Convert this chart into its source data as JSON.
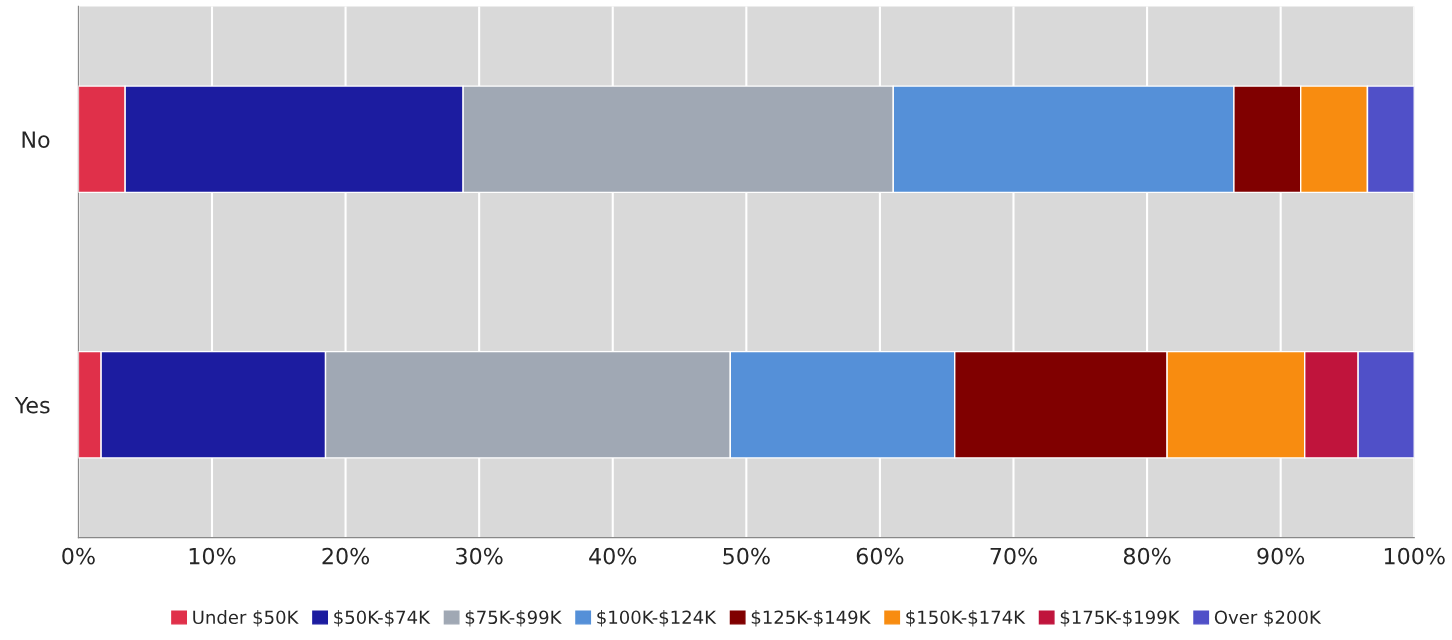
{
  "chart_data": {
    "type": "bar",
    "orientation": "horizontal",
    "stacked": true,
    "categories": [
      "No",
      "Yes"
    ],
    "series": [
      {
        "name": "Under $50K",
        "color": "#e0304a",
        "values": [
          3.5,
          1.7
        ]
      },
      {
        "name": "$50K-$74K",
        "color": "#1c1ca0",
        "values": [
          25.3,
          16.8
        ]
      },
      {
        "name": "$75K-$99K",
        "color": "#a0a8b4",
        "values": [
          32.2,
          30.3
        ]
      },
      {
        "name": "$100K-$124K",
        "color": "#5590d8",
        "values": [
          25.5,
          16.8
        ]
      },
      {
        "name": "$125K-$149K",
        "color": "#800000",
        "values": [
          5.0,
          15.9
        ]
      },
      {
        "name": "$150K-$174K",
        "color": "#f88c10",
        "values": [
          5.0,
          10.3
        ]
      },
      {
        "name": "$175K-$199K",
        "color": "#c0143c",
        "values": [
          0,
          4.0
        ]
      },
      {
        "name": "Over $200K",
        "color": "#5050c8",
        "values": [
          3.5,
          4.2
        ]
      }
    ],
    "xlim": [
      0,
      100
    ],
    "xticks": [
      {
        "value": 0,
        "label": "0%"
      },
      {
        "value": 10,
        "label": "10%"
      },
      {
        "value": 20,
        "label": "20%"
      },
      {
        "value": 30,
        "label": "30%"
      },
      {
        "value": 40,
        "label": "40%"
      },
      {
        "value": 50,
        "label": "50%"
      },
      {
        "value": 60,
        "label": "60%"
      },
      {
        "value": 70,
        "label": "70%"
      },
      {
        "value": 80,
        "label": "80%"
      },
      {
        "value": 90,
        "label": "90%"
      },
      {
        "value": 100,
        "label": "100%"
      }
    ],
    "grid": "x",
    "legend": "bottom"
  }
}
